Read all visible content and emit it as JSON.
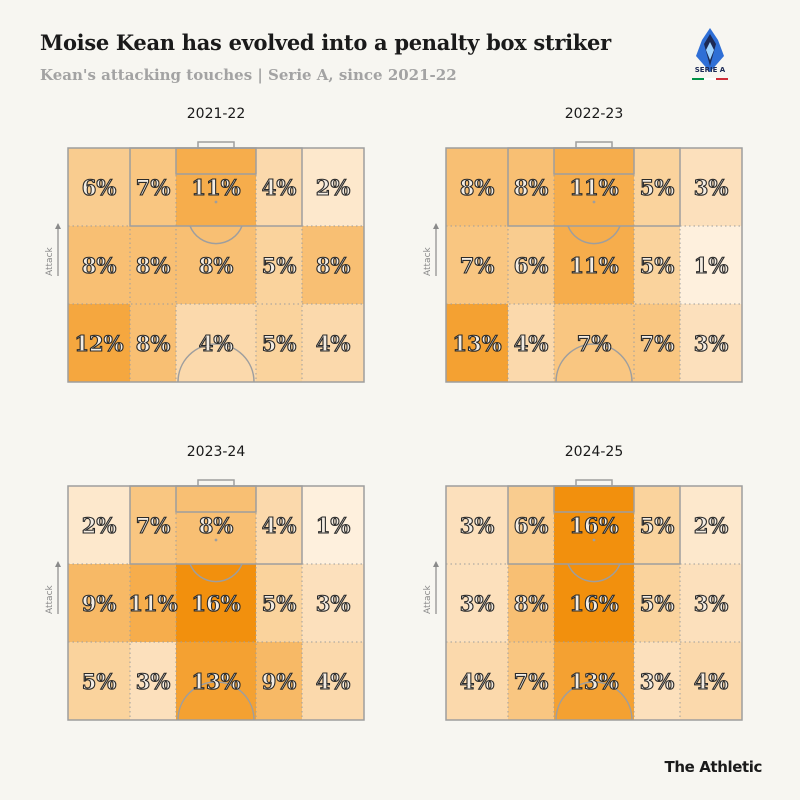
{
  "header": {
    "title": "Moise Kean has evolved into a penalty box striker",
    "subtitle": "Kean's attacking touches | Serie A, since 2021-22"
  },
  "logo": {
    "text": "SERIE A",
    "colors": [
      "#1c2a55",
      "#2f6fd6",
      "#009246",
      "#ffffff",
      "#ce2b37"
    ]
  },
  "footer": {
    "brand": "The Athletic"
  },
  "axis_label": "Attack",
  "colors": {
    "background": "#f7f6f1",
    "scale_low": "#fffaf3",
    "scale_high": "#f2900d",
    "line": "#9e9e9e"
  },
  "chart_data": [
    {
      "type": "heatmap",
      "title": "2021-22",
      "rows": [
        [
          6,
          7,
          11,
          4,
          2
        ],
        [
          8,
          8,
          8,
          5,
          8
        ],
        [
          12,
          8,
          4,
          5,
          4
        ]
      ]
    },
    {
      "type": "heatmap",
      "title": "2022-23",
      "rows": [
        [
          8,
          8,
          11,
          5,
          3
        ],
        [
          7,
          6,
          11,
          5,
          1
        ],
        [
          13,
          4,
          7,
          7,
          3
        ]
      ]
    },
    {
      "type": "heatmap",
      "title": "2023-24",
      "rows": [
        [
          2,
          7,
          8,
          4,
          1
        ],
        [
          9,
          11,
          16,
          5,
          3
        ],
        [
          5,
          3,
          13,
          9,
          4
        ]
      ]
    },
    {
      "type": "heatmap",
      "title": "2024-25",
      "rows": [
        [
          3,
          6,
          16,
          5,
          2
        ],
        [
          3,
          8,
          16,
          5,
          3
        ],
        [
          4,
          7,
          13,
          3,
          4
        ]
      ]
    }
  ]
}
